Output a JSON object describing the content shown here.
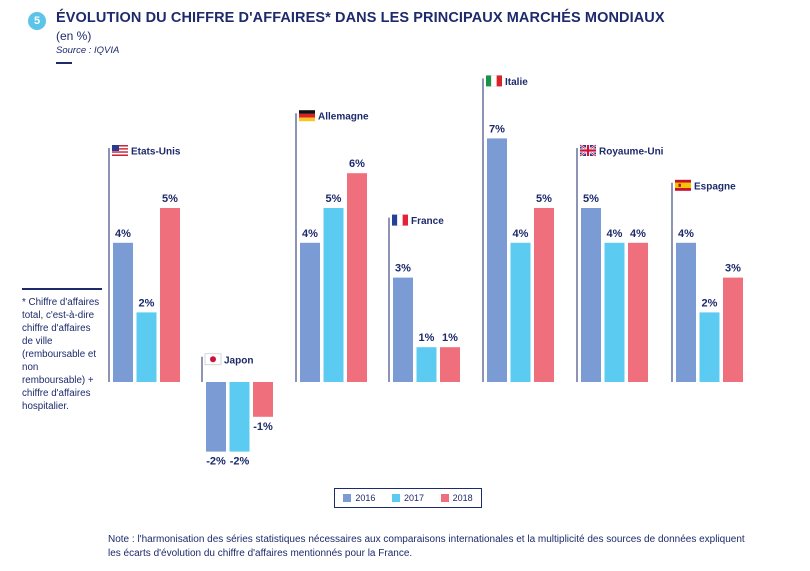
{
  "header": {
    "badge": "5",
    "title": "ÉVOLUTION DU CHIFFRE D'AFFAIRES* DANS LES PRINCIPAUX MARCHÉS MONDIAUX",
    "subtitle": "(en %)",
    "source": "Source : IQVIA"
  },
  "sidenote": "* Chiffre d'affaires total, c'est-à-dire chiffre d'affaires de ville (remboursable et non remboursable) + chiffre d'affaires hospitalier.",
  "note": "Note : l'harmonisation des séries statistiques nécessaires aux comparaisons internationales et la multiplicité des sources de données expliquent les écarts d'évolution du chiffre d'affaires mentionnés pour la France.",
  "colors": {
    "2016": "#7b9bd5",
    "2017": "#5ccbf1",
    "2018": "#f06f7d",
    "text": "#1d2a6b"
  },
  "chart_data": {
    "type": "bar",
    "categories": [
      "Etats-Unis",
      "Japon",
      "Allemagne",
      "France",
      "Italie",
      "Royaume-Uni",
      "Espagne"
    ],
    "flags": [
      "us-flag-icon",
      "japan-flag-icon",
      "germany-flag-icon",
      "france-flag-icon",
      "italy-flag-icon",
      "uk-flag-icon",
      "spain-flag-icon"
    ],
    "series": [
      {
        "name": "2016",
        "values": [
          4,
          -2,
          4,
          3,
          7,
          5,
          4
        ]
      },
      {
        "name": "2017",
        "values": [
          2,
          -2,
          5,
          1,
          4,
          4,
          2
        ]
      },
      {
        "name": "2018",
        "values": [
          5,
          -1,
          6,
          1,
          5,
          4,
          3
        ]
      }
    ],
    "data_labels": [
      [
        "4%",
        "-2%",
        "4%",
        "3%",
        "7%",
        "5%",
        "4%"
      ],
      [
        "2%",
        "-2%",
        "5%",
        "1%",
        "4%",
        "4%",
        "2%"
      ],
      [
        "5%",
        "-1%",
        "6%",
        "1%",
        "5%",
        "4%",
        "3%"
      ]
    ],
    "xlabel": "",
    "ylabel": "",
    "ylim": [
      -2,
      7
    ],
    "grid": false,
    "legend": "bottom-center"
  }
}
